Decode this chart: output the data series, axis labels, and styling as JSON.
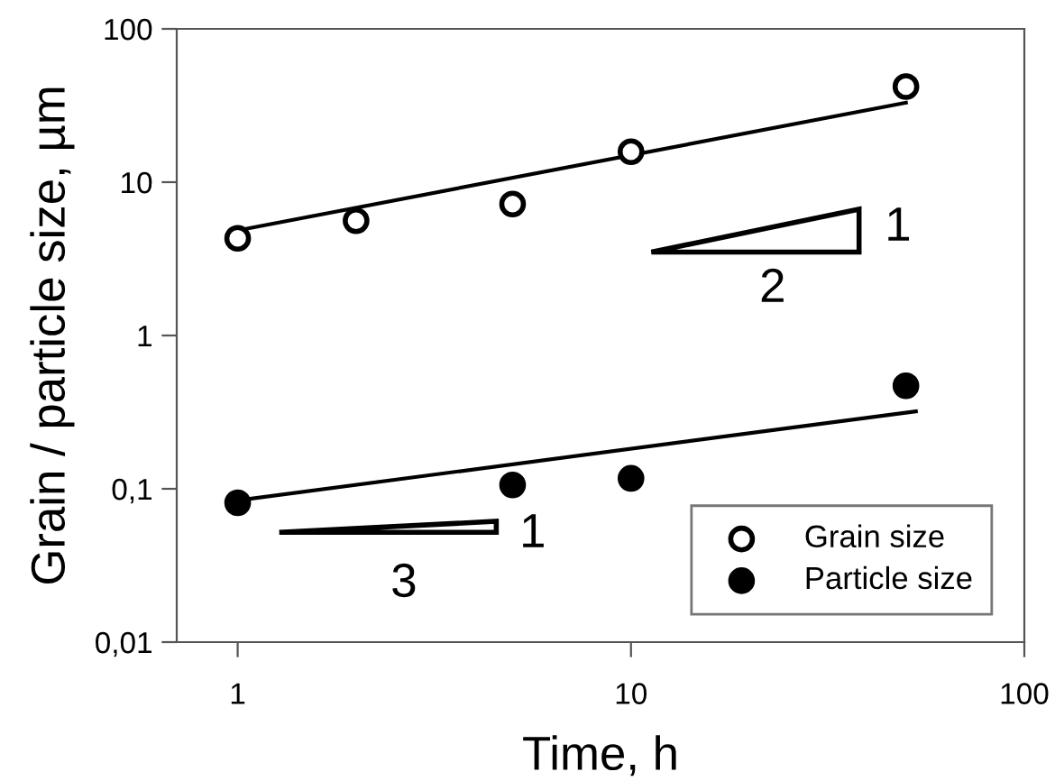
{
  "chart_data": {
    "type": "scatter",
    "xlabel": "Time, h",
    "ylabel": "Grain / particle size, µm",
    "log": "xy",
    "grid": false,
    "legend": "bottom right",
    "xlim": [
      0.7,
      100
    ],
    "ylim": [
      0.01,
      100
    ],
    "xticks": [
      1,
      10,
      100
    ],
    "yticks": [
      {
        "value": 0.01,
        "label": "0,01"
      },
      {
        "value": 0.1,
        "label": "0,1"
      },
      1,
      10,
      100
    ],
    "series": [
      {
        "name": "Grain size",
        "marker": "circle",
        "color": "#000000",
        "x": [
          1,
          2,
          5,
          10,
          50
        ],
        "values": [
          4.3,
          5.6,
          7.2,
          15.8,
          42
        ]
      },
      {
        "name": "Particle size",
        "marker": "circle",
        "color": "#000000",
        "x": [
          1,
          5,
          10,
          50
        ],
        "values": [
          0.081,
          0.106,
          0.117,
          0.47
        ]
      },
      {
        "type": "line",
        "marker": "none",
        "color": "#000000",
        "x": [
          1,
          50
        ],
        "values": [
          4.85,
          33
        ]
      },
      {
        "type": "line",
        "marker": "none",
        "color": "#000000",
        "x": [
          1,
          53
        ],
        "values": [
          0.084,
          0.32
        ]
      }
    ],
    "annotations": [
      "1",
      "2",
      "1",
      "3"
    ]
  }
}
